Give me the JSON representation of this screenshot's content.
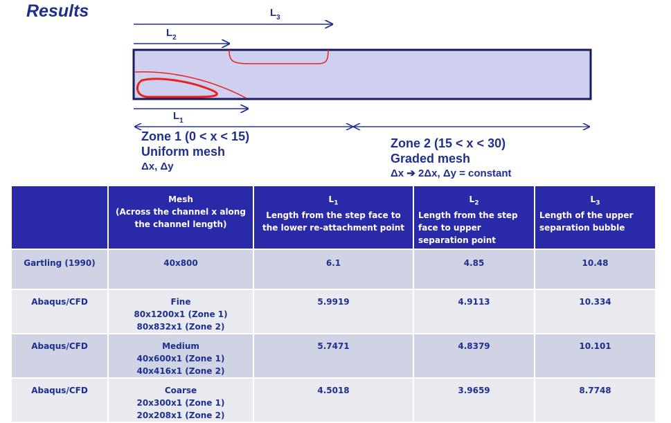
{
  "title": "Results",
  "diagram": {
    "l1_label": "L",
    "l1_sub": "1",
    "l2_label": "L",
    "l2_sub": "2",
    "l3_label": "L",
    "l3_sub": "3",
    "zone1": {
      "line1": "Zone 1 (0 < x < 15)",
      "line2": "Uniform mesh",
      "line3": "Δx, Δy"
    },
    "zone2": {
      "line1": "Zone 2 (15 < x < 30)",
      "line2": "Graded mesh",
      "line3": "Δx  ➔ 2Δx, Δy = constant"
    },
    "colors": {
      "channel_fill": "#cfd0f0",
      "channel_stroke": "#1a1a5e",
      "bubble": "#e8221b",
      "arrow": "#1f2f8f"
    }
  },
  "table": {
    "header": {
      "col0": "",
      "mesh_line1": "Mesh",
      "mesh_line2": "(Across the channel x along",
      "mesh_line3": "the channel length)",
      "l1_label": "L",
      "l1_sub": "1",
      "l1_desc": "Length from the step face to the lower re-attachment point",
      "l2_label": "L",
      "l2_sub": "2",
      "l2_desc": "Length from the step face to upper separation point",
      "l3_label": "L",
      "l3_sub": "3",
      "l3_desc": "Length of the upper separation bubble"
    },
    "rows": [
      {
        "source": "Gartling (1990)",
        "mesh_line1": "40x800",
        "mesh_line2": "",
        "mesh_line3": "",
        "l1": "6.1",
        "l2": "4.85",
        "l3": "10.48"
      },
      {
        "source": "Abaqus/CFD",
        "mesh_line1": "Fine",
        "mesh_line2": "80x1200x1 (Zone 1)",
        "mesh_line3": "80x832x1 (Zone 2)",
        "l1": "5.9919",
        "l2": "4.9113",
        "l3": "10.334"
      },
      {
        "source": "Abaqus/CFD",
        "mesh_line1": "Medium",
        "mesh_line2": "40x600x1 (Zone 1)",
        "mesh_line3": "40x416x1 (Zone 2)",
        "l1": "5.7471",
        "l2": "4.8379",
        "l3": "10.101"
      },
      {
        "source": "Abaqus/CFD",
        "mesh_line1": "Coarse",
        "mesh_line2": "20x300x1 (Zone 1)",
        "mesh_line3": "20x208x1 (Zone 2)",
        "l1": "4.5018",
        "l2": "3.9659",
        "l3": "8.7748"
      }
    ]
  }
}
